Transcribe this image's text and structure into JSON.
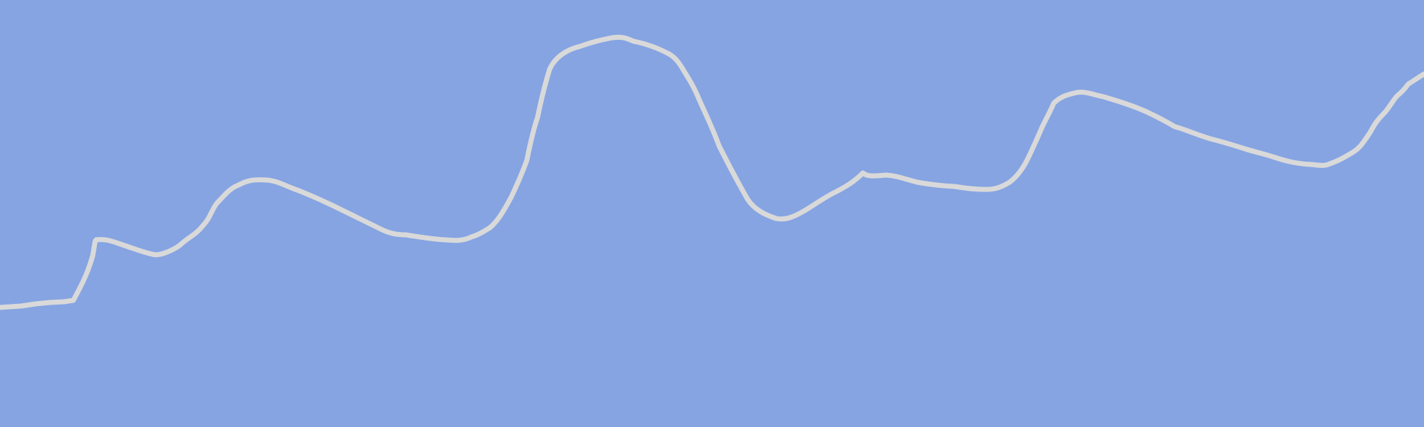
{
  "colors": {
    "background": "#86a4e2",
    "line": "#d9d9d9"
  },
  "decoration": {
    "line_icon": "wavy-line-icon"
  }
}
